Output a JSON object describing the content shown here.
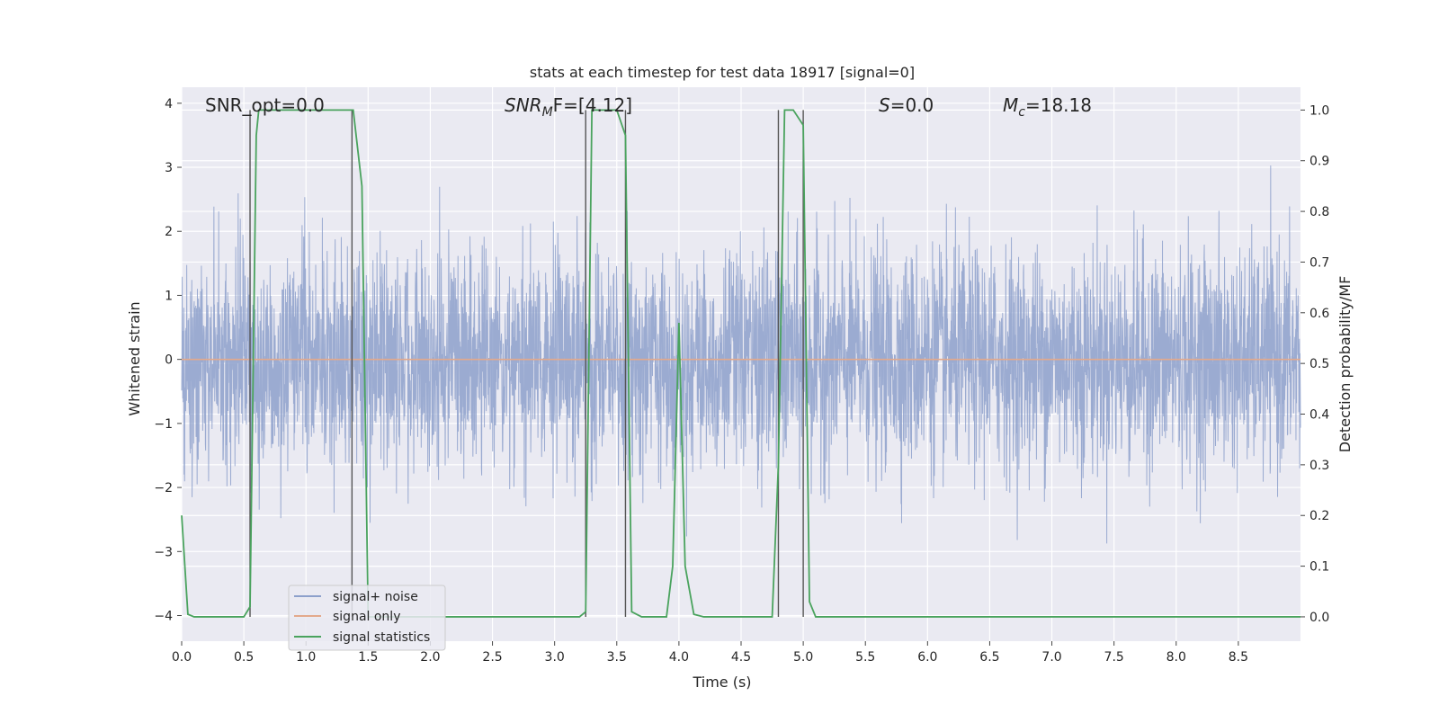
{
  "chart_data": {
    "type": "line",
    "title": "stats at each timestep for test data 18917 [signal=0]",
    "xlabel": "Time (s)",
    "ylabel_left": "Whitened strain",
    "ylabel_right": "Detection probability/MF",
    "xlim": [
      0.0,
      9.0
    ],
    "ylim_left": [
      -4.4,
      4.25
    ],
    "ylim_right": [
      -0.048,
      1.045
    ],
    "x_ticks": [
      "0.0",
      "0.5",
      "1.0",
      "1.5",
      "2.0",
      "2.5",
      "3.0",
      "3.5",
      "4.0",
      "4.5",
      "5.0",
      "5.5",
      "6.0",
      "6.5",
      "7.0",
      "7.5",
      "8.0",
      "8.5"
    ],
    "y_ticks_left": [
      "4",
      "3",
      "2",
      "1",
      "0",
      "−1",
      "−2",
      "−3",
      "−4"
    ],
    "y_ticks_right": [
      "1.0",
      "0.9",
      "0.8",
      "0.7",
      "0.6",
      "0.5",
      "0.4",
      "0.3",
      "0.2",
      "0.1",
      "0.0"
    ],
    "grid": true,
    "legend_position": "lower-left",
    "annotations": {
      "snr_opt": "SNR_opt=0.0",
      "snr_mf_sym": "SNR",
      "snr_mf_sub": "M",
      "snr_mf_rest": "F=[4.12]",
      "s_sym": "S",
      "s_rest": "=0.0",
      "mc_sym": "M",
      "mc_sub": "c",
      "mc_rest": "=18.18"
    },
    "series": [
      {
        "name": "signal+ noise",
        "color": "#8da0cb",
        "kind": "noise",
        "x_range": [
          0.0,
          9.0
        ],
        "approx_std": 0.85,
        "extreme_range": [
          -3.7,
          3.9
        ]
      },
      {
        "name": "signal only",
        "color": "#e3a98c",
        "x": [
          0.0,
          9.0
        ],
        "y": [
          0.0,
          0.0
        ]
      },
      {
        "name": "signal statistics",
        "color": "#4aa35e",
        "x": [
          0.0,
          0.05,
          0.1,
          0.5,
          0.55,
          0.6,
          0.62,
          1.35,
          1.38,
          1.45,
          1.5,
          3.2,
          3.25,
          3.3,
          3.5,
          3.57,
          3.62,
          3.7,
          3.9,
          3.95,
          4.0,
          4.05,
          4.12,
          4.2,
          4.75,
          4.8,
          4.85,
          4.92,
          5.0,
          5.05,
          5.1,
          8.7,
          9.0
        ],
        "y": [
          0.2,
          0.005,
          0.0,
          0.0,
          0.02,
          0.95,
          1.0,
          1.0,
          1.0,
          0.85,
          0.0,
          0.0,
          0.01,
          1.0,
          1.0,
          0.95,
          0.01,
          0.0,
          0.0,
          0.1,
          0.58,
          0.1,
          0.005,
          0.0,
          0.0,
          0.3,
          1.0,
          1.0,
          0.97,
          0.03,
          0.0,
          0.0,
          0.0
        ]
      },
      {
        "name": "",
        "color": "#555555",
        "kind": "markers",
        "x": [
          0.55,
          1.37,
          3.25,
          3.57,
          4.8,
          5.0
        ],
        "y": [
          1.0,
          1.0,
          1.0,
          1.0,
          1.0,
          1.0
        ]
      }
    ]
  }
}
